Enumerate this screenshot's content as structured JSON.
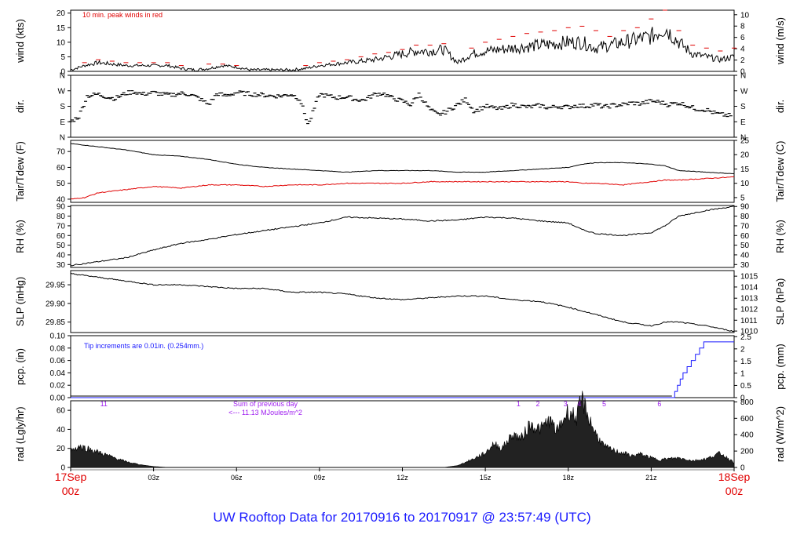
{
  "footer_title": "UW Rooftop Data for 20170916  to  20170917 @ 23:57:49  (UTC)",
  "colors": {
    "ink": "#000000",
    "red": "#e00000",
    "blue": "#1a1aff",
    "purple": "#a020f0"
  },
  "chart_data": [
    {
      "type": "line",
      "name": "wind",
      "ylabel": "wind (kts)",
      "ylabel_right": "wind (m/s)",
      "ylim": [
        0,
        21
      ],
      "yticks": [
        0,
        5,
        10,
        15,
        20
      ],
      "right_ticks": [
        "0",
        "2",
        "4",
        "6",
        "8",
        "10"
      ],
      "right_tick_values_kts": [
        0,
        3.89,
        7.78,
        11.66,
        15.55,
        19.44
      ],
      "annotation": "10 min. peak winds in red",
      "series": [
        {
          "role": "wind",
          "color": "black",
          "x": [
            0,
            0.5,
            1,
            1.5,
            2,
            2.5,
            3,
            3.5,
            4,
            4.5,
            5,
            5.5,
            6,
            6.5,
            7,
            7.5,
            8,
            8.5,
            9,
            9.5,
            10,
            10.5,
            11,
            11.5,
            12,
            12.5,
            13,
            13.5,
            14,
            14.5,
            15,
            15.5,
            16,
            16.5,
            17,
            17.5,
            18,
            18.5,
            19,
            19.5,
            20,
            20.5,
            21,
            21.5,
            22,
            22.5,
            23,
            23.5,
            24
          ],
          "y": [
            0.5,
            2,
            3,
            2.5,
            2,
            2,
            2,
            2,
            1,
            0.5,
            1,
            2,
            1.5,
            0.5,
            0.5,
            0.5,
            0.5,
            1,
            2,
            2.5,
            3,
            3.5,
            4,
            5,
            6,
            7,
            7,
            7.5,
            3,
            6,
            7,
            7.5,
            8,
            8.5,
            9,
            9.5,
            10,
            10,
            8,
            9,
            10,
            11,
            12,
            15,
            10,
            6,
            5,
            4,
            5
          ]
        },
        {
          "role": "peak",
          "color": "red",
          "x": [
            0.5,
            1,
            1.5,
            2,
            2.5,
            3,
            3.5,
            4,
            5,
            5.5,
            6,
            8.5,
            9,
            9.5,
            10,
            10.5,
            11,
            11.5,
            12,
            12.5,
            13,
            13.5,
            14.5,
            15,
            15.5,
            16,
            16.5,
            17,
            17.5,
            18,
            18.5,
            19,
            19.5,
            20,
            20.5,
            21,
            21.5,
            22,
            22.5,
            23,
            23.5,
            24
          ],
          "y": [
            3,
            4,
            3.5,
            3,
            3,
            3,
            3,
            2,
            2.5,
            2.5,
            2,
            2,
            3,
            3.5,
            4,
            5,
            6,
            6.5,
            7.5,
            9,
            9,
            9.5,
            8,
            10,
            11,
            12,
            13,
            13.5,
            14,
            15,
            15.5,
            14,
            12,
            14,
            15,
            18,
            21,
            14,
            9,
            8,
            7,
            8
          ]
        }
      ]
    },
    {
      "type": "scatter",
      "name": "direction",
      "ylabel": "dir.",
      "ylabel_right": "dir.",
      "ylim": [
        0,
        360
      ],
      "yticks": [
        0,
        90,
        180,
        270,
        360
      ],
      "tick_labels": [
        "N",
        "E",
        "S",
        "W",
        "N"
      ],
      "points_x": [
        0,
        0.3,
        0.6,
        1,
        1.3,
        1.6,
        2,
        2.3,
        2.6,
        3,
        3.3,
        3.6,
        4,
        4.3,
        4.6,
        5,
        5.3,
        5.6,
        6,
        6.3,
        6.6,
        7,
        7.3,
        7.6,
        8,
        8.3,
        8.6,
        9,
        9.3,
        9.6,
        10,
        10.3,
        10.6,
        11,
        11.3,
        11.6,
        12,
        12.3,
        12.6,
        13,
        13.3,
        13.6,
        14,
        14.3,
        14.6,
        15,
        15.3,
        15.6,
        16,
        16.3,
        16.6,
        17,
        17.3,
        17.6,
        18,
        18.3,
        18.6,
        19,
        19.3,
        19.6,
        20,
        20.3,
        20.6,
        21,
        21.3,
        21.6,
        22,
        22.3,
        22.6,
        23,
        23.3,
        23.6,
        23.9
      ],
      "points_y": [
        90,
        120,
        240,
        250,
        235,
        225,
        255,
        265,
        250,
        260,
        250,
        245,
        255,
        250,
        230,
        190,
        255,
        240,
        260,
        255,
        250,
        245,
        240,
        240,
        250,
        220,
        70,
        250,
        240,
        230,
        235,
        220,
        215,
        250,
        255,
        230,
        210,
        190,
        250,
        160,
        130,
        150,
        190,
        220,
        150,
        180,
        170,
        165,
        190,
        180,
        175,
        185,
        170,
        180,
        175,
        185,
        180,
        190,
        175,
        185,
        190,
        200,
        195,
        210,
        205,
        190,
        200,
        185,
        165,
        160,
        140,
        130,
        125
      ]
    },
    {
      "type": "line",
      "name": "temperature",
      "ylabel": "Tair/Tdew (F)",
      "ylabel_right": "Tair/Tdew (C)",
      "ylim": [
        38,
        77
      ],
      "yticks": [
        40,
        50,
        60,
        70
      ],
      "right_ticks": [
        "5",
        "10",
        "15",
        "20",
        "25"
      ],
      "right_tick_values_f": [
        41,
        50,
        59,
        68,
        77
      ],
      "x": [
        0,
        0.5,
        1,
        2,
        3,
        4,
        5,
        6,
        7,
        8,
        9,
        10,
        11,
        12,
        13,
        14,
        15,
        16,
        17,
        18,
        18.5,
        19,
        20,
        21,
        21.5,
        22,
        23,
        24
      ],
      "series": [
        {
          "role": "air temperature",
          "color": "black",
          "y": [
            75,
            74,
            73,
            71,
            68,
            67,
            65,
            62,
            60,
            59,
            58,
            57,
            58,
            58,
            58,
            57,
            57,
            58,
            59,
            60,
            62,
            63,
            63,
            62,
            61,
            58,
            57,
            56
          ]
        },
        {
          "role": "dewpoint",
          "color": "red",
          "y": [
            40,
            41,
            44,
            46,
            48,
            47,
            49,
            49,
            48,
            49,
            49,
            50,
            50,
            50,
            51,
            51,
            51,
            51,
            51,
            51,
            50,
            50,
            49,
            51,
            52,
            52,
            53,
            54
          ]
        }
      ]
    },
    {
      "type": "line",
      "name": "relative humidity",
      "ylabel": "RH (%)",
      "ylabel_right": "RH (%)",
      "ylim": [
        27,
        91
      ],
      "yticks": [
        30,
        40,
        50,
        60,
        70,
        80,
        90
      ],
      "x": [
        0,
        1,
        2,
        3,
        4,
        5,
        6,
        7,
        8,
        9,
        10,
        11,
        12,
        13,
        14,
        15,
        16,
        17,
        18,
        18.5,
        19,
        20,
        21,
        21.5,
        22,
        23,
        24
      ],
      "series": [
        {
          "role": "relative humidity",
          "color": "black",
          "y": [
            29,
            33,
            37,
            45,
            52,
            56,
            61,
            65,
            69,
            73,
            79,
            78,
            77,
            75,
            76,
            79,
            78,
            75,
            73,
            66,
            62,
            60,
            63,
            70,
            80,
            86,
            90
          ]
        }
      ]
    },
    {
      "type": "line",
      "name": "sea level pressure",
      "ylabel": "SLP (inHg)",
      "ylabel_right": "SLP (hPa)",
      "ylim": [
        29.822,
        29.988
      ],
      "yticks": [
        29.85,
        29.9,
        29.95
      ],
      "tick_labels": [
        "29.85",
        "29.90",
        "29.95"
      ],
      "right_ticks": [
        "1010",
        "1011",
        "1012",
        "1013",
        "1014",
        "1015"
      ],
      "right_tick_values_inhg": [
        29.826,
        29.855,
        29.885,
        29.914,
        29.944,
        29.973
      ],
      "x": [
        0,
        1,
        2,
        3,
        4,
        5,
        6,
        7,
        8,
        9,
        10,
        11,
        12,
        13,
        14,
        15,
        16,
        17,
        18,
        19,
        20,
        21,
        21.5,
        22,
        23,
        24
      ],
      "series": [
        {
          "role": "sea level pressure",
          "color": "black",
          "y": [
            29.98,
            29.97,
            29.96,
            29.95,
            29.95,
            29.945,
            29.94,
            29.94,
            29.93,
            29.93,
            29.925,
            29.915,
            29.91,
            29.915,
            29.92,
            29.92,
            29.91,
            29.905,
            29.89,
            29.87,
            29.85,
            29.84,
            29.85,
            29.85,
            29.84,
            29.825
          ]
        }
      ]
    },
    {
      "type": "line",
      "name": "precipitation",
      "ylabel": "pcp. (in)",
      "ylabel_right": "pcp. (mm)",
      "ylim": [
        0,
        0.1
      ],
      "yticks": [
        0,
        0.02,
        0.04,
        0.06,
        0.08,
        0.1
      ],
      "tick_labels": [
        "0.00",
        "0.02",
        "0.04",
        "0.06",
        "0.08",
        "0.10"
      ],
      "right_ticks": [
        "0",
        "0.5",
        "1",
        "1.5",
        "2",
        "2.5"
      ],
      "right_tick_values_in": [
        0,
        0.0197,
        0.0394,
        0.0591,
        0.0787,
        0.0984
      ],
      "annotation": "Tip increments are 0.01in. (0.254mm.)",
      "series": [
        {
          "role": "accumulated precipitation",
          "color": "blue",
          "x": [
            0,
            21.75,
            21.85,
            21.95,
            22.05,
            22.15,
            22.3,
            22.45,
            22.6,
            22.75,
            22.9,
            24
          ],
          "y": [
            0,
            0,
            0.01,
            0.02,
            0.03,
            0.04,
            0.05,
            0.06,
            0.07,
            0.08,
            0.09,
            0.09
          ]
        }
      ]
    },
    {
      "type": "area",
      "name": "solar radiation",
      "ylabel": "rad (Lgly/hr)",
      "ylabel_right": "rad (W/m^2)",
      "ylim": [
        0,
        70
      ],
      "yticks": [
        0,
        20,
        40,
        60
      ],
      "right_ticks": [
        "0",
        "200",
        "400",
        "600",
        "800"
      ],
      "right_tick_values_lgly": [
        0,
        17.2,
        34.4,
        51.6,
        68.8
      ],
      "annotation_lines": [
        "Sum of previous day",
        "<--- 11.13 MJoules/m^2"
      ],
      "hour_marks": [
        {
          "label": "11",
          "x": 1.2
        },
        {
          "label": "1",
          "x": 16.2
        },
        {
          "label": "2",
          "x": 16.9
        },
        {
          "label": "3",
          "x": 17.9
        },
        {
          "label": "4",
          "x": 18.4
        },
        {
          "label": "5",
          "x": 19.3
        },
        {
          "label": "6",
          "x": 21.3
        }
      ],
      "x": [
        0,
        0.3,
        0.6,
        1,
        1.5,
        2,
        2.5,
        3,
        3.5,
        13.5,
        14,
        14.5,
        15,
        15.3,
        15.6,
        16,
        16.3,
        16.6,
        17,
        17.3,
        17.6,
        18,
        18.3,
        18.5,
        18.7,
        19,
        19.3,
        19.6,
        20,
        20.3,
        20.6,
        21,
        21.3,
        21.6,
        22,
        22.5,
        23,
        23.5,
        24
      ],
      "series": [
        {
          "role": "solar radiation",
          "color": "black",
          "y": [
            18,
            22,
            20,
            16,
            11,
            6,
            3,
            1,
            0,
            0,
            2,
            8,
            15,
            25,
            20,
            35,
            30,
            45,
            40,
            50,
            38,
            60,
            52,
            72,
            55,
            35,
            22,
            18,
            15,
            12,
            14,
            10,
            8,
            9,
            10,
            7,
            9,
            15,
            5
          ]
        }
      ]
    }
  ],
  "x_axis": {
    "xlim": [
      0,
      24
    ],
    "ticks": [
      {
        "x": 0,
        "label": "17Sep",
        "label2": "00z",
        "highlight": true
      },
      {
        "x": 3,
        "label": "03z"
      },
      {
        "x": 6,
        "label": "06z"
      },
      {
        "x": 9,
        "label": "09z"
      },
      {
        "x": 12,
        "label": "12z"
      },
      {
        "x": 15,
        "label": "15z"
      },
      {
        "x": 18,
        "label": "18z"
      },
      {
        "x": 21,
        "label": "21z"
      },
      {
        "x": 24,
        "label": "18Sep",
        "label2": "00z",
        "highlight": true
      }
    ]
  }
}
